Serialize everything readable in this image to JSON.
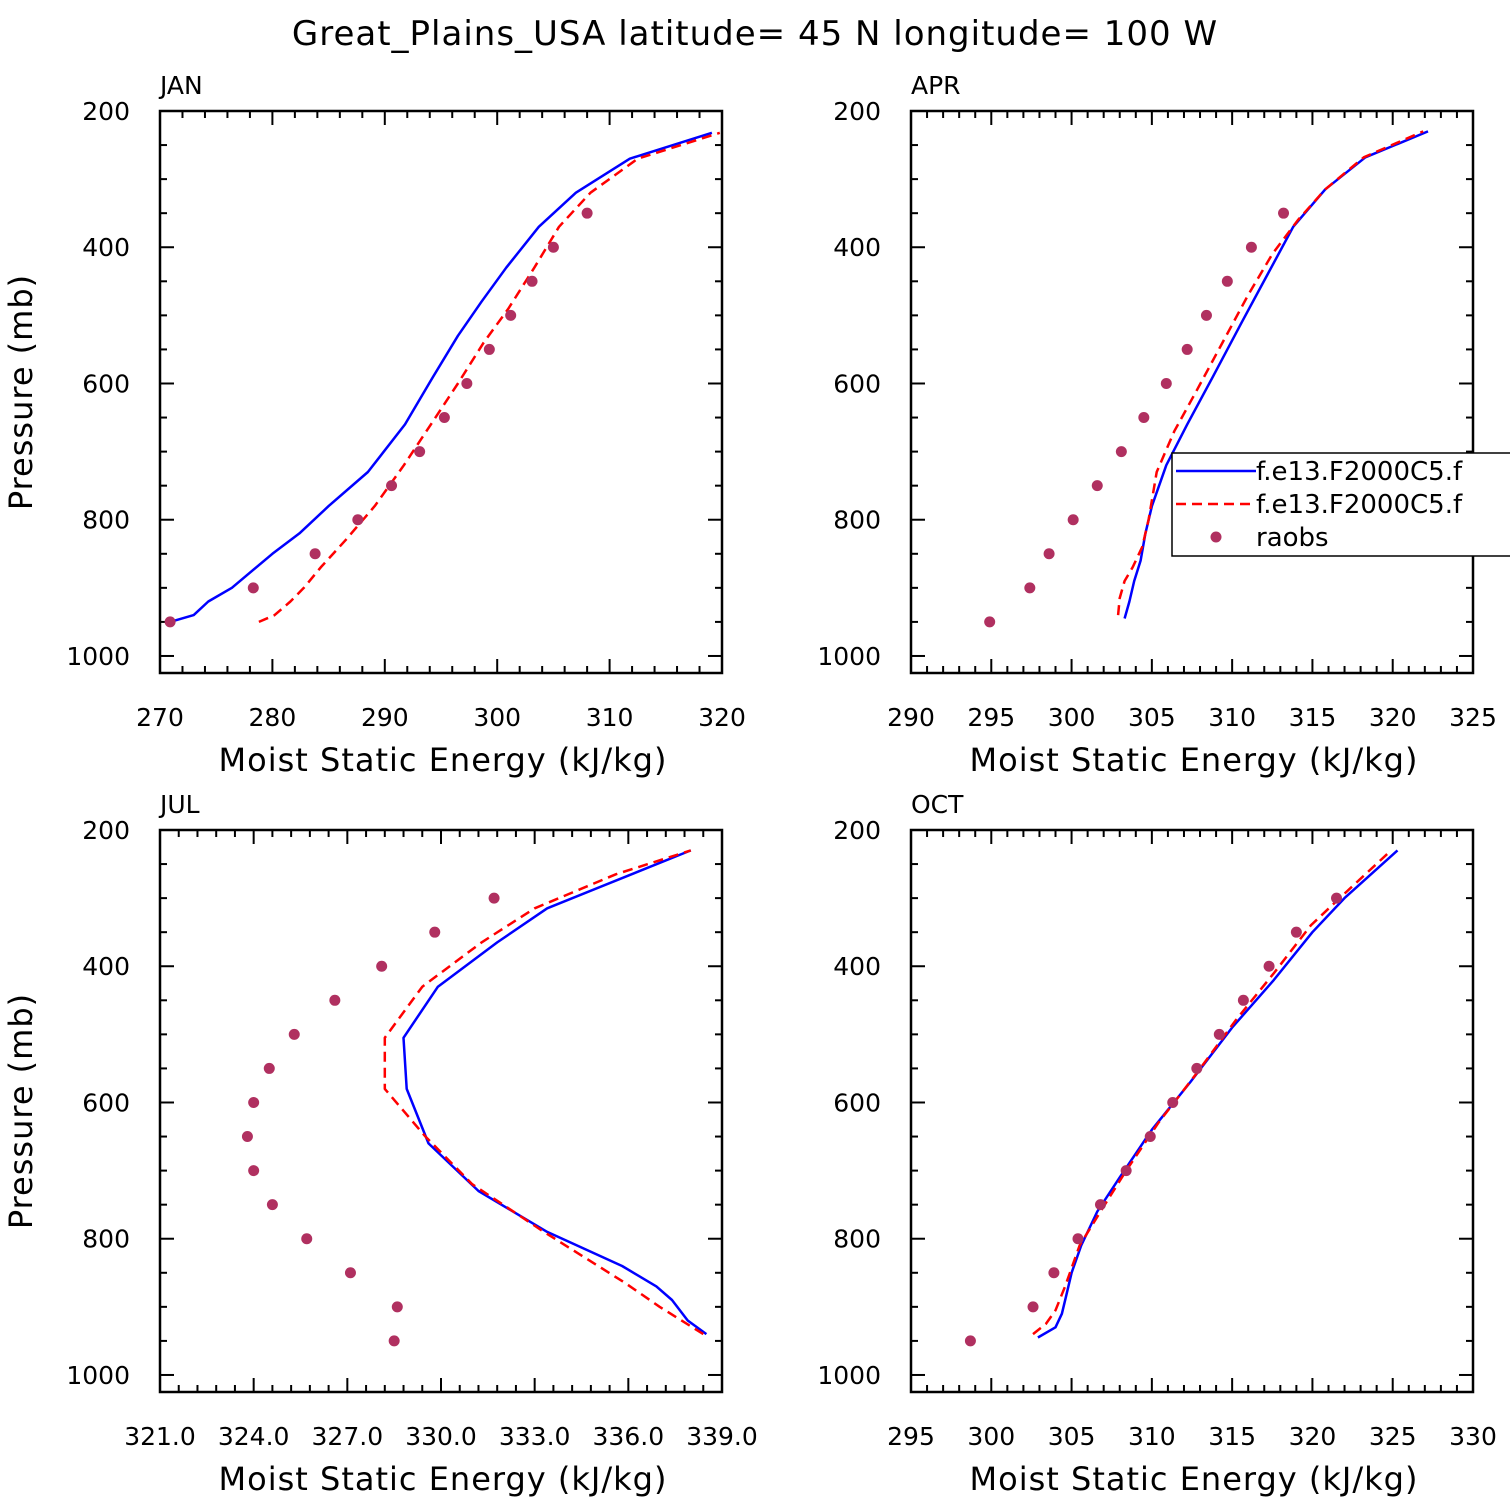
{
  "title": "Great_Plains_USA  latitude= 45 N longitude= 100 W",
  "colors": {
    "model1": "#0000ff",
    "model2": "#ff0000",
    "raobs": "#b03060",
    "axes": "#000000"
  },
  "legend": {
    "entries": [
      {
        "label": "f.e13.F2000C5.f",
        "color": "#0000ff",
        "style": "solid"
      },
      {
        "label": "f.e13.F2000C5.f",
        "color": "#ff0000",
        "style": "dashed"
      },
      {
        "label": "raobs",
        "color": "#b03060",
        "style": "dots"
      }
    ]
  },
  "chart_data": [
    {
      "type": "line",
      "panel": "JAN",
      "xlabel": "Moist Static Energy (kJ/kg)",
      "ylabel": "Pressure (mb)",
      "xlim": [
        270,
        320
      ],
      "ylim": [
        1000,
        200
      ],
      "y_inverted": true,
      "xticks": [
        "270",
        "280",
        "290",
        "300",
        "310",
        "320"
      ],
      "yticks": [
        "200",
        "400",
        "600",
        "800",
        "1000"
      ],
      "series": [
        {
          "name": "f.e13.F2000C5.f",
          "style": "solid",
          "x": [
            270.9,
            273.0,
            274.3,
            276.4,
            280.0,
            282.4,
            285.0,
            288.5,
            291.8,
            294.3,
            296.5,
            298.6,
            300.8,
            303.7,
            307.0,
            311.8,
            319.1
          ],
          "y": [
            950,
            940,
            920,
            900,
            850,
            820,
            780,
            730,
            660,
            590,
            530,
            480,
            430,
            370,
            320,
            270,
            232
          ]
        },
        {
          "name": "f.e13.F2000C5.f",
          "style": "dashed",
          "x": [
            278.8,
            280.2,
            281.6,
            282.8,
            284.3,
            286.5,
            289.1,
            291.7,
            294.1,
            296.5,
            298.8,
            301.0,
            303.3,
            305.5,
            308.3,
            312.5,
            319.8
          ],
          "y": [
            950,
            940,
            920,
            900,
            870,
            830,
            780,
            720,
            660,
            600,
            540,
            490,
            430,
            370,
            320,
            270,
            232
          ]
        },
        {
          "name": "raobs",
          "style": "dots",
          "x": [
            270.9,
            278.3,
            283.8,
            287.6,
            290.6,
            293.1,
            295.3,
            297.3,
            299.3,
            301.2,
            303.1,
            305.0,
            308.0
          ],
          "y": [
            950,
            900,
            850,
            800,
            750,
            700,
            650,
            600,
            550,
            500,
            450,
            400,
            350
          ]
        }
      ]
    },
    {
      "type": "line",
      "panel": "APR",
      "xlabel": "Moist Static Energy (kJ/kg)",
      "ylabel": "Pressure (mb)",
      "xlim": [
        290,
        325
      ],
      "ylim": [
        1000,
        200
      ],
      "y_inverted": true,
      "xticks": [
        "290",
        "295",
        "300",
        "305",
        "310",
        "315",
        "320",
        "325"
      ],
      "yticks": [
        "200",
        "400",
        "600",
        "800",
        "1000"
      ],
      "series": [
        {
          "name": "f.e13.F2000C5.f",
          "style": "solid",
          "x": [
            303.3,
            303.6,
            303.9,
            304.3,
            304.6,
            305.0,
            305.9,
            307.2,
            308.8,
            310.6,
            312.2,
            313.8,
            315.8,
            318.3,
            322.2
          ],
          "y": [
            945,
            920,
            890,
            860,
            820,
            780,
            720,
            660,
            590,
            510,
            440,
            370,
            315,
            268,
            230
          ]
        },
        {
          "name": "f.e13.F2000C5.f",
          "style": "dashed",
          "x": [
            302.9,
            303.0,
            303.3,
            303.8,
            304.4,
            304.8,
            305.3,
            306.4,
            307.8,
            309.4,
            311.0,
            312.5,
            314.1,
            315.8,
            318.2,
            321.9
          ],
          "y": [
            940,
            915,
            890,
            870,
            840,
            800,
            730,
            670,
            610,
            540,
            470,
            410,
            360,
            315,
            268,
            230
          ]
        },
        {
          "name": "raobs",
          "style": "dots",
          "x": [
            294.9,
            297.4,
            298.6,
            300.1,
            301.6,
            303.1,
            304.5,
            305.9,
            307.2,
            308.4,
            309.7,
            311.2,
            313.2
          ],
          "y": [
            950,
            900,
            850,
            800,
            750,
            700,
            650,
            600,
            550,
            500,
            450,
            400,
            350
          ]
        }
      ]
    },
    {
      "type": "line",
      "panel": "JUL",
      "xlabel": "Moist Static Energy (kJ/kg)",
      "ylabel": "Pressure (mb)",
      "xlim": [
        321.0,
        339.0
      ],
      "ylim": [
        1000,
        200
      ],
      "y_inverted": true,
      "xticks": [
        "321.0",
        "324.0",
        "327.0",
        "330.0",
        "333.0",
        "336.0",
        "339.0"
      ],
      "yticks": [
        "200",
        "400",
        "600",
        "800",
        "1000"
      ],
      "series": [
        {
          "name": "f.e13.F2000C5.f",
          "style": "solid",
          "x": [
            338.5,
            337.9,
            337.4,
            336.9,
            335.8,
            333.4,
            331.2,
            329.6,
            328.9,
            328.8,
            329.9,
            331.8,
            333.4,
            336.1,
            338.0
          ],
          "y": [
            940,
            920,
            890,
            870,
            840,
            790,
            730,
            660,
            580,
            505,
            430,
            365,
            315,
            265,
            230
          ]
        },
        {
          "name": "f.e13.F2000C5.f",
          "style": "dashed",
          "x": [
            338.4,
            337.0,
            335.9,
            333.3,
            331.0,
            329.5,
            328.2,
            328.2,
            329.4,
            331.3,
            333.0,
            335.6,
            338.0
          ],
          "y": [
            940,
            900,
            865,
            790,
            720,
            650,
            580,
            505,
            430,
            365,
            315,
            265,
            230
          ]
        },
        {
          "name": "raobs",
          "style": "dots",
          "x": [
            328.5,
            328.6,
            327.1,
            325.7,
            324.6,
            324.0,
            323.8,
            324.0,
            324.5,
            325.3,
            326.6,
            328.1,
            329.8,
            331.7
          ],
          "y": [
            950,
            900,
            850,
            800,
            750,
            700,
            650,
            600,
            550,
            500,
            450,
            400,
            350,
            300
          ]
        }
      ]
    },
    {
      "type": "line",
      "panel": "OCT",
      "xlabel": "Moist Static Energy (kJ/kg)",
      "ylabel": "Pressure (mb)",
      "xlim": [
        295,
        330
      ],
      "ylim": [
        1000,
        200
      ],
      "y_inverted": true,
      "xticks": [
        "295",
        "300",
        "305",
        "310",
        "315",
        "320",
        "325",
        "330"
      ],
      "yticks": [
        "200",
        "400",
        "600",
        "800",
        "1000"
      ],
      "series": [
        {
          "name": "f.e13.F2000C5.f",
          "style": "solid",
          "x": [
            302.9,
            304.0,
            304.4,
            304.7,
            305.0,
            305.6,
            306.6,
            308.0,
            310.0,
            312.4,
            315.0,
            317.6,
            320.0,
            322.0,
            325.3
          ],
          "y": [
            945,
            930,
            910,
            880,
            850,
            810,
            760,
            710,
            640,
            570,
            490,
            420,
            350,
            300,
            230
          ]
        },
        {
          "name": "f.e13.F2000C5.f",
          "style": "dashed",
          "x": [
            302.6,
            303.4,
            304.0,
            304.6,
            305.5,
            306.8,
            308.4,
            310.4,
            312.7,
            315.2,
            317.6,
            319.9,
            321.7,
            324.9
          ],
          "y": [
            940,
            925,
            905,
            870,
            810,
            760,
            700,
            630,
            560,
            480,
            410,
            340,
            300,
            230
          ]
        },
        {
          "name": "raobs",
          "style": "dots",
          "x": [
            298.7,
            302.6,
            303.9,
            305.4,
            306.8,
            308.4,
            309.9,
            311.3,
            312.8,
            314.2,
            315.7,
            317.3,
            319.0,
            321.5
          ],
          "y": [
            950,
            900,
            850,
            800,
            750,
            700,
            650,
            600,
            550,
            500,
            450,
            400,
            350,
            300
          ]
        }
      ]
    }
  ]
}
